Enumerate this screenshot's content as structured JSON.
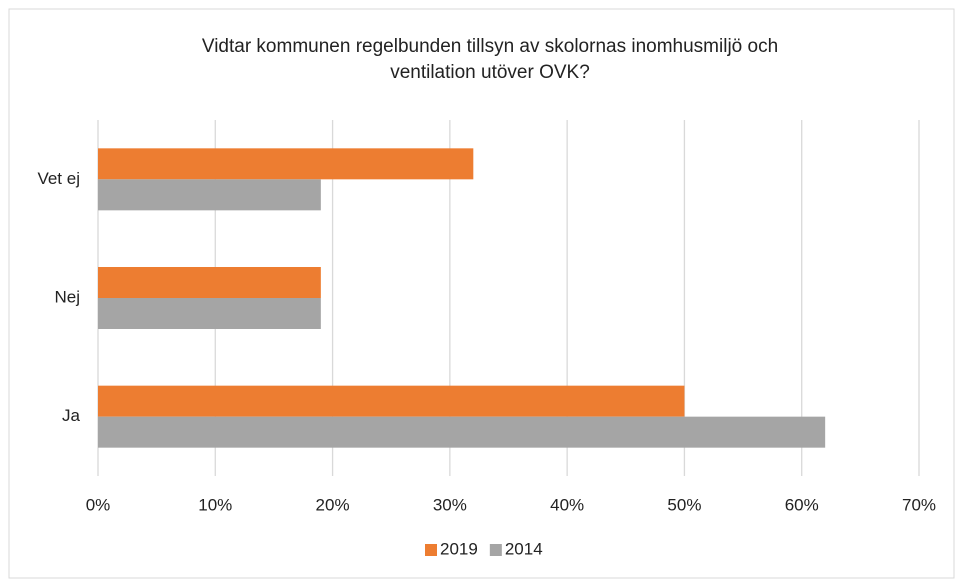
{
  "chart_data": {
    "type": "hbar",
    "title": [
      "Vidtar kommunen regelbunden tillsyn av skolornas inomhusmiljö och",
      "ventilation utöver OVK?"
    ],
    "categories": [
      "Vet ej",
      "Nej",
      "Ja"
    ],
    "series": [
      {
        "name": "2019",
        "color": "#ed7d31",
        "values": [
          32,
          19,
          50
        ]
      },
      {
        "name": "2014",
        "color": "#a5a5a5",
        "values": [
          19,
          19,
          62
        ]
      }
    ],
    "xlim": [
      0,
      70
    ],
    "xticks": [
      {
        "value": 0,
        "label": "0%"
      },
      {
        "value": 10,
        "label": "10%"
      },
      {
        "value": 20,
        "label": "20%"
      },
      {
        "value": 30,
        "label": "30%"
      },
      {
        "value": 40,
        "label": "40%"
      },
      {
        "value": 50,
        "label": "50%"
      },
      {
        "value": 60,
        "label": "60%"
      },
      {
        "value": 70,
        "label": "70%"
      }
    ],
    "grid": true,
    "legend": "bottom"
  }
}
